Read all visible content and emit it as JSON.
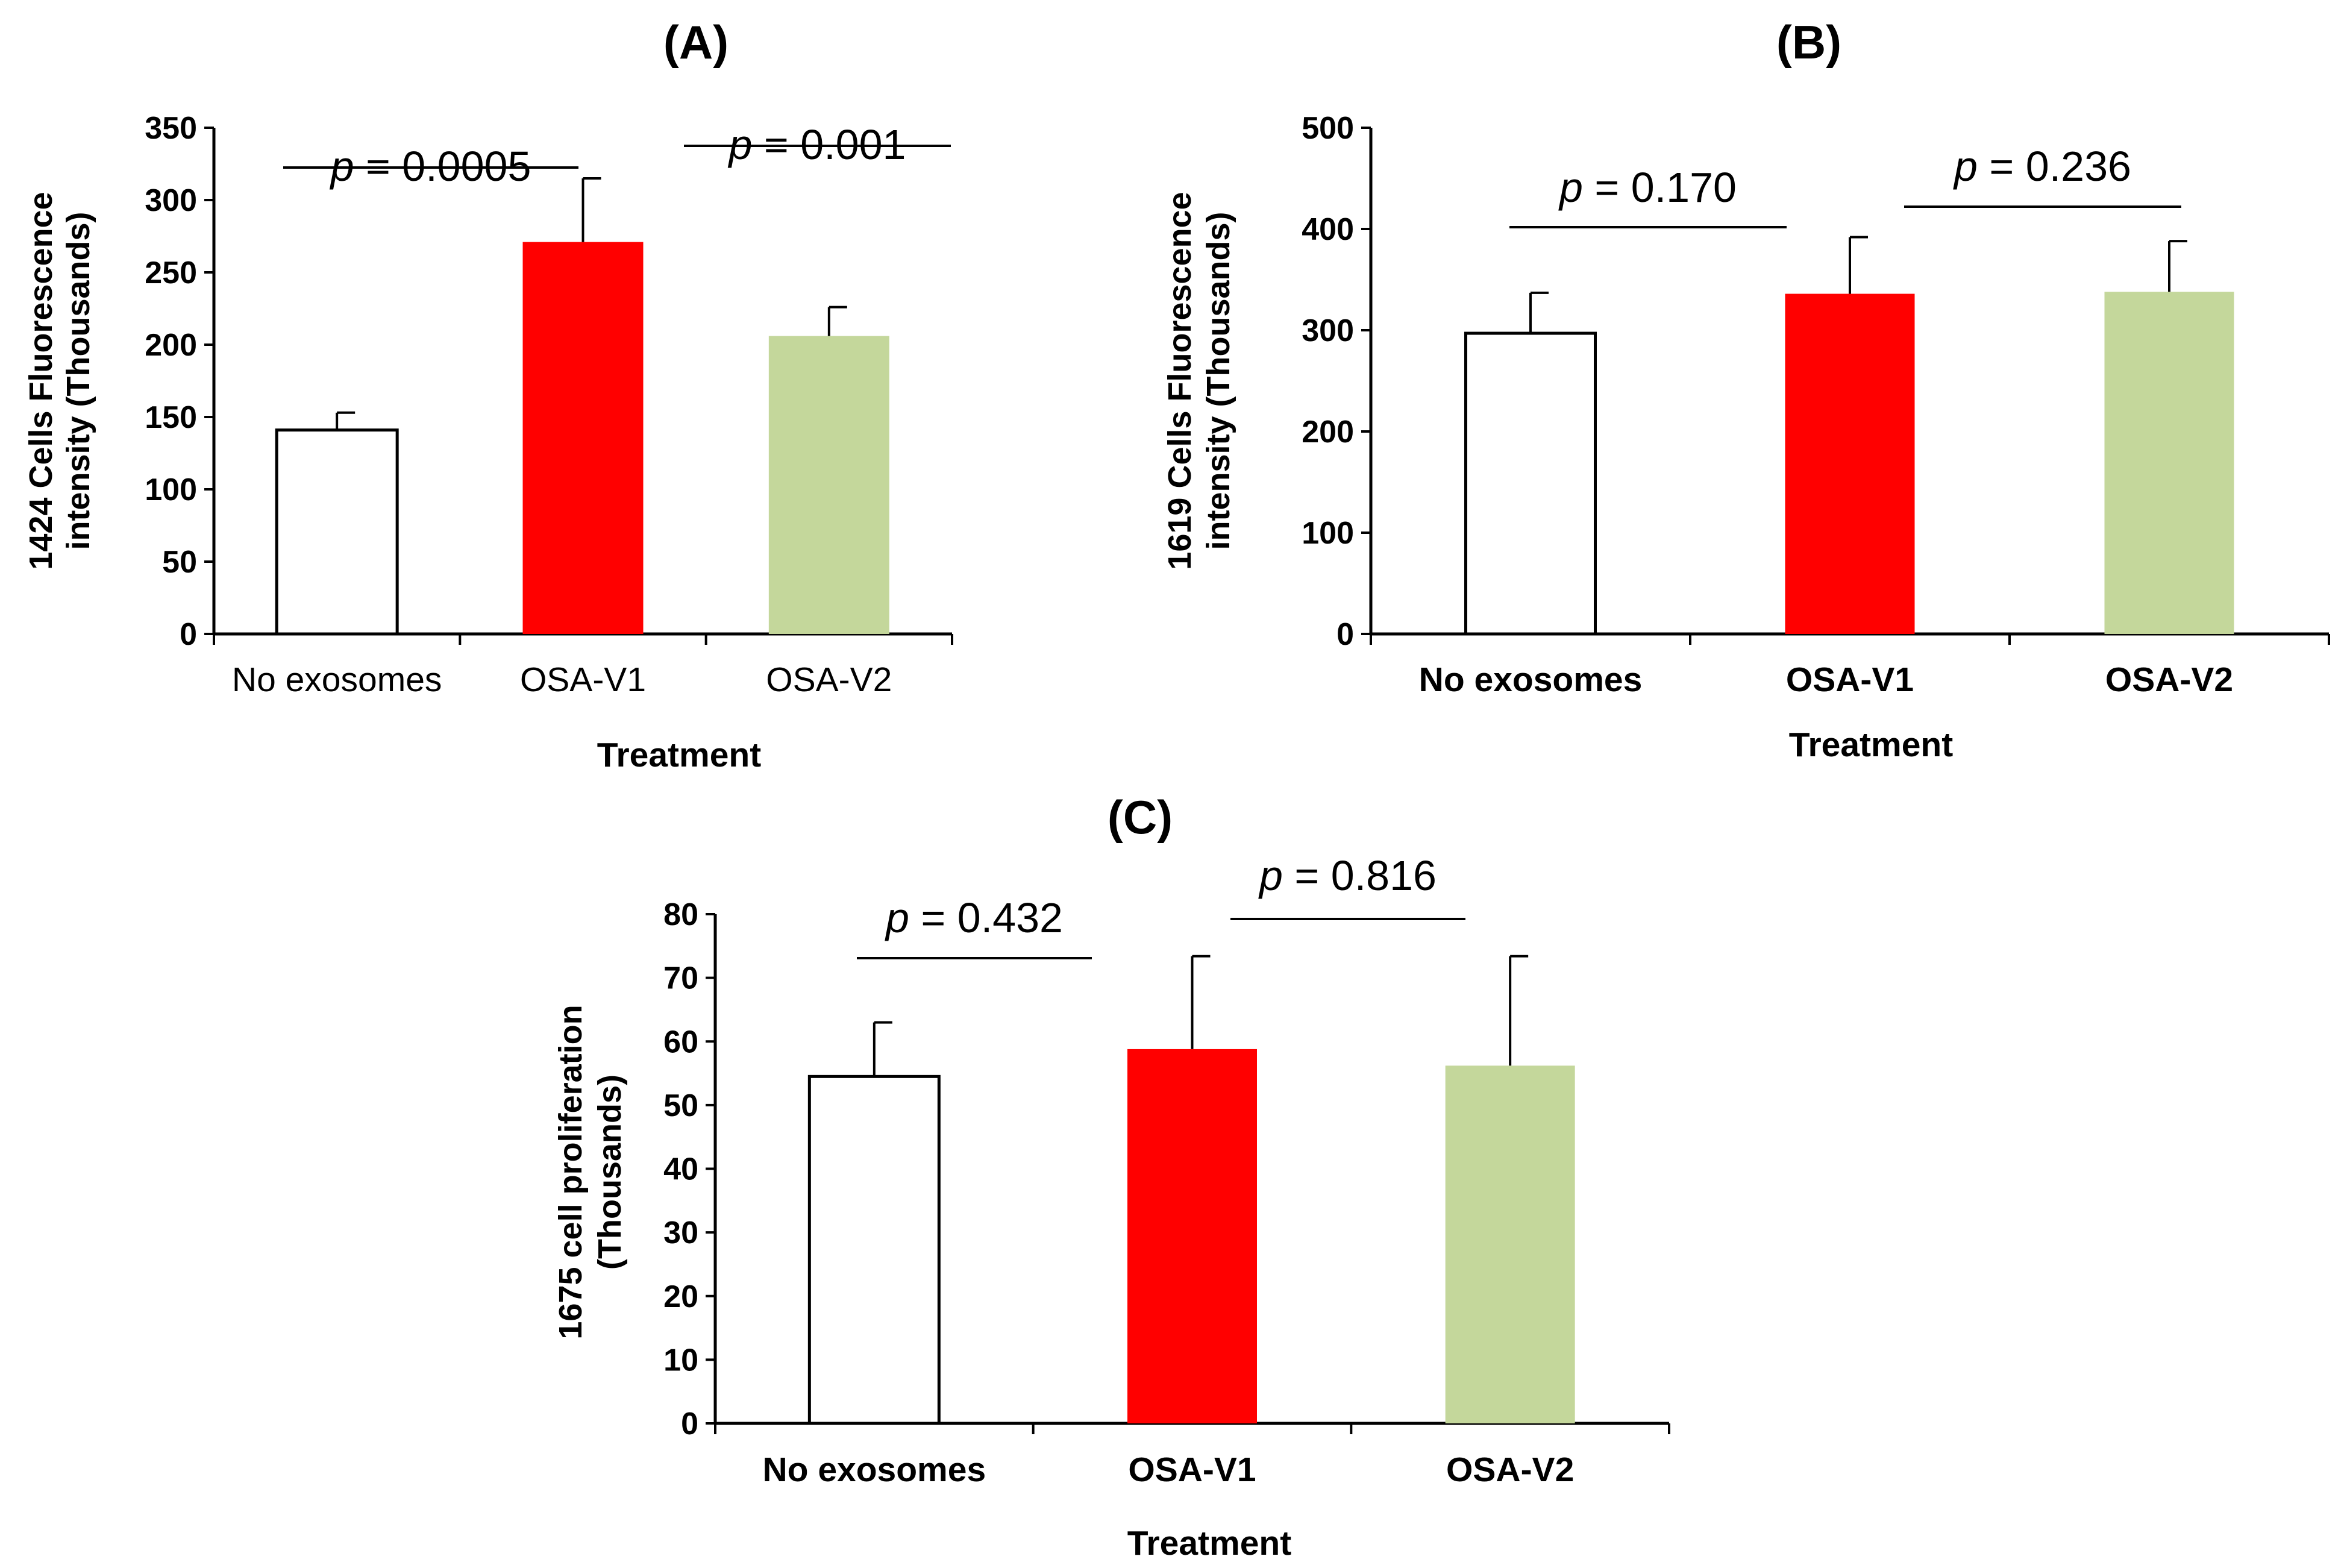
{
  "chart_data": [
    {
      "type": "bar",
      "panel": "A",
      "title": "(A)",
      "categories": [
        "No exosomes",
        "OSA-V1",
        "OSA-V2"
      ],
      "values": [
        141,
        271,
        206
      ],
      "errors": [
        12,
        44,
        20
      ],
      "colors": [
        "#ffffff",
        "#ff0000",
        "#c4d79b"
      ],
      "xlabel": "Treatment",
      "ylabel_lines": [
        "1424 Cells Fluorescence",
        "intensity (Thousands)"
      ],
      "ylim": [
        0,
        350
      ],
      "yticks": [
        0,
        50,
        100,
        150,
        200,
        250,
        300,
        350
      ],
      "category_font": "normal",
      "annotations": [
        {
          "p_label": "p",
          "p_value": "= 0.0005",
          "from": 0,
          "to": 1
        },
        {
          "p_label": "p",
          "p_value": "= 0.001",
          "from": 1,
          "to": 2
        }
      ]
    },
    {
      "type": "bar",
      "panel": "B",
      "title": "(B)",
      "categories": [
        "No exosomes",
        "OSA-V1",
        "OSA-V2"
      ],
      "values": [
        297,
        336,
        338
      ],
      "errors": [
        40,
        56,
        50
      ],
      "colors": [
        "#ffffff",
        "#ff0000",
        "#c4d79b"
      ],
      "xlabel": "Treatment",
      "ylabel_lines": [
        "1619 Cells Fluorescence",
        "intensity (Thousands)"
      ],
      "ylim": [
        0,
        500
      ],
      "yticks": [
        0,
        100,
        200,
        300,
        400,
        500
      ],
      "category_font": "bold",
      "annotations": [
        {
          "p_label": "p",
          "p_value": "= 0.170",
          "from": 0,
          "to": 1
        },
        {
          "p_label": "p",
          "p_value": "= 0.236",
          "from": 1,
          "to": 2
        }
      ]
    },
    {
      "type": "bar",
      "panel": "C",
      "title": "(C)",
      "categories": [
        "No exosomes",
        "OSA-V1",
        "OSA-V2"
      ],
      "values": [
        54.5,
        58.8,
        56.2
      ],
      "errors": [
        8.5,
        14.6,
        17.2
      ],
      "colors": [
        "#ffffff",
        "#ff0000",
        "#c4d79b"
      ],
      "xlabel": "Treatment",
      "ylabel_lines": [
        "1675 cell proliferation",
        "(Thousands)"
      ],
      "ylim": [
        0,
        80
      ],
      "yticks": [
        0,
        10,
        20,
        30,
        40,
        50,
        60,
        70,
        80
      ],
      "category_font": "bold",
      "annotations": [
        {
          "p_label": "p",
          "p_value": "= 0.432",
          "from": 0,
          "to": 1
        },
        {
          "p_label": "p",
          "p_value": "= 0.816",
          "from": 1,
          "to": 2
        }
      ]
    }
  ]
}
